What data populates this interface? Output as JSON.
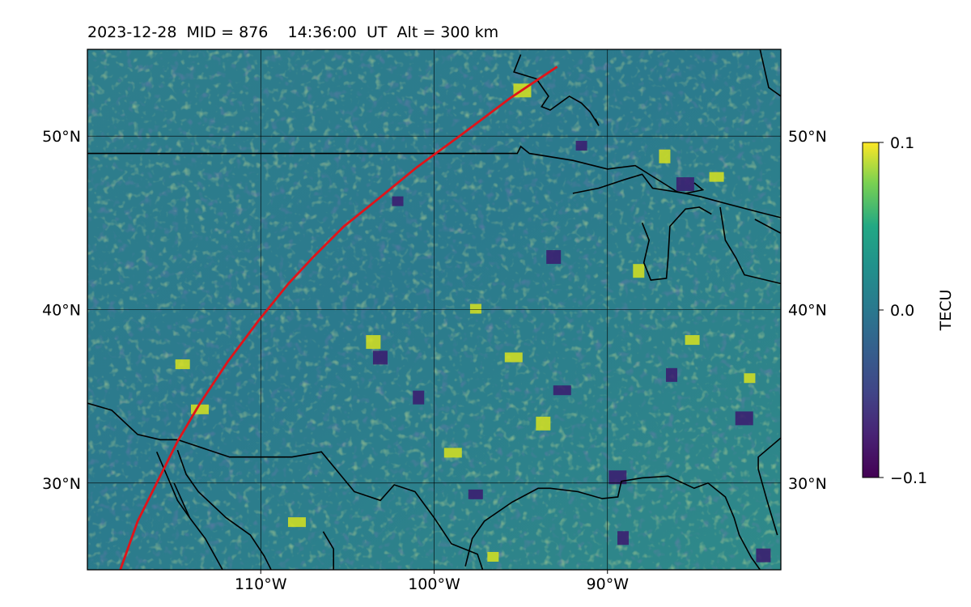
{
  "title": "2023-12-28  MID = 876    14:36:00  UT  Alt = 300 km",
  "chart_data": {
    "type": "heatmap",
    "title": "2023-12-28  MID = 876    14:36:00  UT  Alt = 300 km",
    "xlabel": "",
    "ylabel": "",
    "xlim": [
      -120,
      -80
    ],
    "ylim": [
      25,
      55
    ],
    "x_ticks": [
      {
        "value": -110,
        "label": "110°W"
      },
      {
        "value": -100,
        "label": "100°W"
      },
      {
        "value": -90,
        "label": "90°W"
      }
    ],
    "y_ticks": [
      {
        "value": 30,
        "label": "30°N"
      },
      {
        "value": 40,
        "label": "40°N"
      },
      {
        "value": 50,
        "label": "50°N"
      }
    ],
    "grid": true,
    "colormap": "viridis",
    "colorbar": {
      "label": "TECU",
      "min": -0.1,
      "max": 0.1,
      "ticks": [
        {
          "value": 0.1,
          "label": "0.1"
        },
        {
          "value": 0.0,
          "label": "0.0"
        },
        {
          "value": -0.1,
          "label": "−0.1"
        }
      ]
    },
    "features": [
      {
        "kind": "point",
        "lon": -102.1,
        "lat": 46.2,
        "value": -0.1
      },
      {
        "kind": "point",
        "lon": -103.2,
        "lat": 37.3,
        "value": -0.1
      },
      {
        "kind": "point",
        "lon": -95.6,
        "lat": 37.2,
        "value": 0.1
      },
      {
        "kind": "point",
        "lon": -86.3,
        "lat": 36.3,
        "value": -0.1
      },
      {
        "kind": "point",
        "lon": -85.2,
        "lat": 38.2,
        "value": 0.1
      },
      {
        "kind": "point",
        "lon": -82.3,
        "lat": 33.8,
        "value": -0.1
      },
      {
        "kind": "point",
        "lon": -81.8,
        "lat": 36.0,
        "value": 0.1
      },
      {
        "kind": "point",
        "lon": -93.8,
        "lat": 33.5,
        "value": 0.1
      },
      {
        "kind": "point",
        "lon": -113.7,
        "lat": 34.2,
        "value": 0.1
      },
      {
        "kind": "point",
        "lon": -86.7,
        "lat": 48.9,
        "value": 0.1
      },
      {
        "kind": "point",
        "lon": -83.8,
        "lat": 47.6,
        "value": 0.1
      },
      {
        "kind": "point",
        "lon": -85.7,
        "lat": 47.3,
        "value": -0.1
      },
      {
        "kind": "point",
        "lon": -96.6,
        "lat": 25.7,
        "value": 0.1
      },
      {
        "kind": "point",
        "lon": -81.1,
        "lat": 25.9,
        "value": -0.1
      },
      {
        "kind": "point",
        "lon": -108.1,
        "lat": 27.7,
        "value": 0.1
      },
      {
        "kind": "point",
        "lon": -89.1,
        "lat": 26.9,
        "value": -0.1
      },
      {
        "kind": "point",
        "lon": -97.7,
        "lat": 29.3,
        "value": -0.1
      },
      {
        "kind": "point",
        "lon": -89.6,
        "lat": 30.4,
        "value": -0.1
      },
      {
        "kind": "point",
        "lon": -97.6,
        "lat": 40.0,
        "value": 0.1
      },
      {
        "kind": "point",
        "lon": -103.6,
        "lat": 38.2,
        "value": 0.1
      },
      {
        "kind": "point",
        "lon": -92.8,
        "lat": 35.3,
        "value": -0.1
      },
      {
        "kind": "point",
        "lon": -100.9,
        "lat": 35.0,
        "value": -0.1
      },
      {
        "kind": "point",
        "lon": -114.6,
        "lat": 36.8,
        "value": 0.1
      },
      {
        "kind": "point",
        "lon": -95.1,
        "lat": 52.7,
        "value": 0.1
      },
      {
        "kind": "point",
        "lon": -91.5,
        "lat": 49.4,
        "value": -0.1
      },
      {
        "kind": "point",
        "lon": -93.2,
        "lat": 43.1,
        "value": -0.1
      },
      {
        "kind": "point",
        "lon": -99.1,
        "lat": 31.7,
        "value": 0.1
      },
      {
        "kind": "point",
        "lon": -88.2,
        "lat": 42.3,
        "value": 0.1
      }
    ],
    "series": [
      {
        "type": "line",
        "color": "#e0141a",
        "lon": [
          -118.1,
          -117.1,
          -116.0,
          -114.8,
          -113.5,
          -111.9,
          -110.1,
          -108.4,
          -107.0,
          -105.2,
          -103.2,
          -101.0,
          -98.4,
          -95.6,
          -92.9
        ],
        "lat": [
          25.0,
          27.8,
          30.0,
          32.4,
          34.6,
          37.0,
          39.4,
          41.5,
          43.0,
          44.8,
          46.4,
          48.2,
          50.1,
          52.2,
          54.0
        ]
      }
    ],
    "coastlines": [
      [
        [
          -120,
          34.6
        ],
        [
          -118.6,
          34.2
        ],
        [
          -117.1,
          32.8
        ],
        [
          -115.8,
          32.5
        ],
        [
          -114.8,
          32.5
        ],
        [
          -111.8,
          31.5
        ],
        [
          -108.2,
          31.5
        ],
        [
          -106.5,
          31.8
        ],
        [
          -104.6,
          29.5
        ],
        [
          -103.1,
          29.0
        ],
        [
          -102.3,
          29.9
        ],
        [
          -101.1,
          29.5
        ],
        [
          -100.0,
          28.0
        ],
        [
          -99.0,
          26.5
        ],
        [
          -97.5,
          25.9
        ],
        [
          -97.2,
          25.0
        ]
      ],
      [
        [
          -114.8,
          31.9
        ],
        [
          -114.3,
          30.5
        ],
        [
          -113.6,
          29.5
        ],
        [
          -112.0,
          28.0
        ],
        [
          -110.6,
          27.0
        ],
        [
          -109.8,
          25.8
        ],
        [
          -109.4,
          25.0
        ]
      ],
      [
        [
          -115.0,
          30.0
        ],
        [
          -114.1,
          28.0
        ],
        [
          -113.2,
          26.8
        ],
        [
          -112.2,
          25.0
        ]
      ],
      [
        [
          -116.0,
          31.8
        ],
        [
          -115.4,
          30.4
        ],
        [
          -114.8,
          29.0
        ],
        [
          -114.1,
          28.0
        ]
      ],
      [
        [
          -105.8,
          25.0
        ],
        [
          -105.8,
          26.2
        ],
        [
          -106.4,
          27.2
        ]
      ],
      [
        [
          -98.2,
          25.2
        ],
        [
          -97.8,
          26.8
        ],
        [
          -97.1,
          27.8
        ],
        [
          -95.5,
          28.9
        ],
        [
          -94.0,
          29.7
        ],
        [
          -93.3,
          29.7
        ],
        [
          -91.7,
          29.5
        ],
        [
          -90.3,
          29.1
        ],
        [
          -89.4,
          29.2
        ],
        [
          -89.2,
          30.1
        ],
        [
          -88.0,
          30.3
        ],
        [
          -86.5,
          30.4
        ],
        [
          -85.0,
          29.7
        ],
        [
          -84.2,
          30.0
        ],
        [
          -83.2,
          29.2
        ],
        [
          -82.7,
          28.0
        ],
        [
          -82.4,
          27.0
        ],
        [
          -81.7,
          25.7
        ],
        [
          -81.2,
          25.0
        ]
      ],
      [
        [
          -80.0,
          32.6
        ],
        [
          -81.3,
          31.5
        ],
        [
          -81.3,
          30.8
        ],
        [
          -80.8,
          29.0
        ],
        [
          -80.2,
          27.0
        ]
      ],
      [
        [
          -120,
          49.0
        ],
        [
          -114,
          49.0
        ],
        [
          -104,
          49.0
        ],
        [
          -95.2,
          49.0
        ],
        [
          -95.0,
          49.4
        ],
        [
          -94.5,
          49.0
        ],
        [
          -92.0,
          48.6
        ],
        [
          -90.0,
          48.1
        ],
        [
          -88.4,
          48.3
        ],
        [
          -86.8,
          47.3
        ],
        [
          -86.0,
          46.8
        ],
        [
          -84.6,
          46.5
        ],
        [
          -83.5,
          46.2
        ],
        [
          -81.2,
          45.6
        ],
        [
          -80.0,
          45.3
        ]
      ],
      [
        [
          -92.0,
          46.7
        ],
        [
          -90.5,
          47.0
        ],
        [
          -89.0,
          47.5
        ],
        [
          -88.0,
          47.8
        ],
        [
          -87.4,
          47.0
        ],
        [
          -85.5,
          46.7
        ],
        [
          -84.5,
          46.9
        ],
        [
          -85.0,
          47.3
        ]
      ],
      [
        [
          -88.0,
          45.0
        ],
        [
          -87.6,
          44.0
        ],
        [
          -87.9,
          42.7
        ],
        [
          -87.5,
          41.7
        ],
        [
          -86.6,
          41.8
        ],
        [
          -86.5,
          43.0
        ],
        [
          -86.4,
          44.8
        ],
        [
          -85.5,
          45.8
        ],
        [
          -84.7,
          45.9
        ],
        [
          -84.0,
          45.5
        ]
      ],
      [
        [
          -83.5,
          45.9
        ],
        [
          -83.2,
          44.0
        ],
        [
          -82.6,
          43.0
        ],
        [
          -82.1,
          42.0
        ],
        [
          -80.0,
          41.5
        ]
      ],
      [
        [
          -80.0,
          44.4
        ],
        [
          -81.5,
          45.2
        ]
      ],
      [
        [
          -95.0,
          54.7
        ],
        [
          -95.4,
          53.7
        ],
        [
          -94.1,
          53.3
        ],
        [
          -93.4,
          52.3
        ],
        [
          -93.8,
          51.7
        ],
        [
          -93.3,
          51.5
        ],
        [
          -92.2,
          52.3
        ],
        [
          -91.5,
          51.9
        ],
        [
          -91.0,
          51.4
        ],
        [
          -90.5,
          50.6
        ],
        [
          -90.7,
          51.0
        ]
      ],
      [
        [
          -81.2,
          55.0
        ],
        [
          -80.7,
          52.8
        ],
        [
          -80.0,
          52.3
        ]
      ]
    ]
  }
}
